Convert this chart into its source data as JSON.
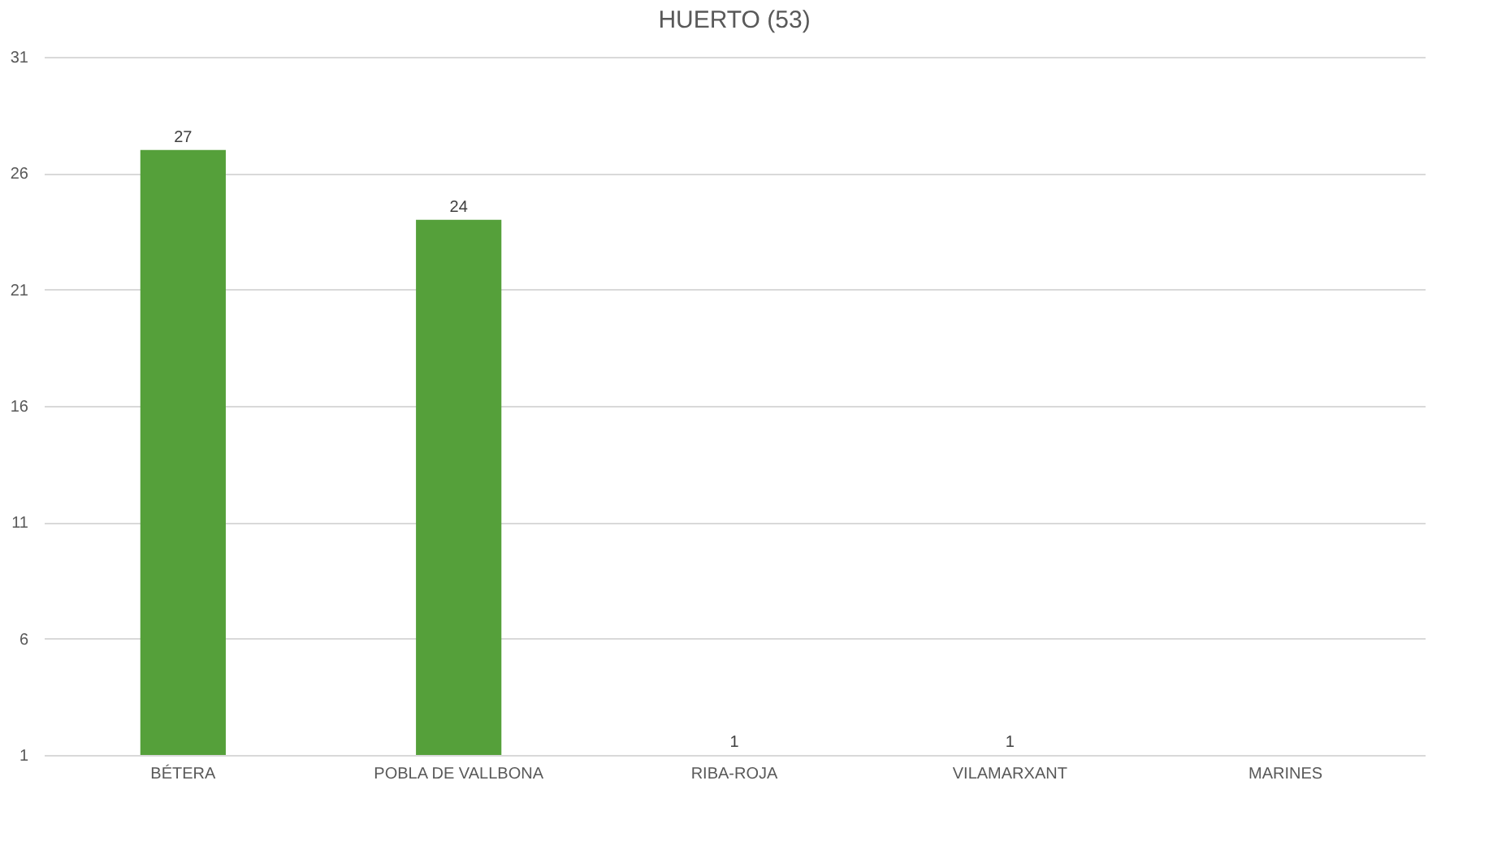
{
  "chart_data": {
    "type": "bar",
    "title": "HUERTO (53)",
    "categories": [
      "BÉTERA",
      "POBLA DE VALLBONA",
      "RIBA-ROJA",
      "VILAMARXANT",
      "MARINES"
    ],
    "values": [
      27,
      24,
      1,
      1,
      null
    ],
    "color": "#55a03a",
    "ylim": [
      1,
      31
    ],
    "yticks": [
      1,
      6,
      11,
      16,
      21,
      26,
      31
    ],
    "grid": "y",
    "data_labels": true
  }
}
